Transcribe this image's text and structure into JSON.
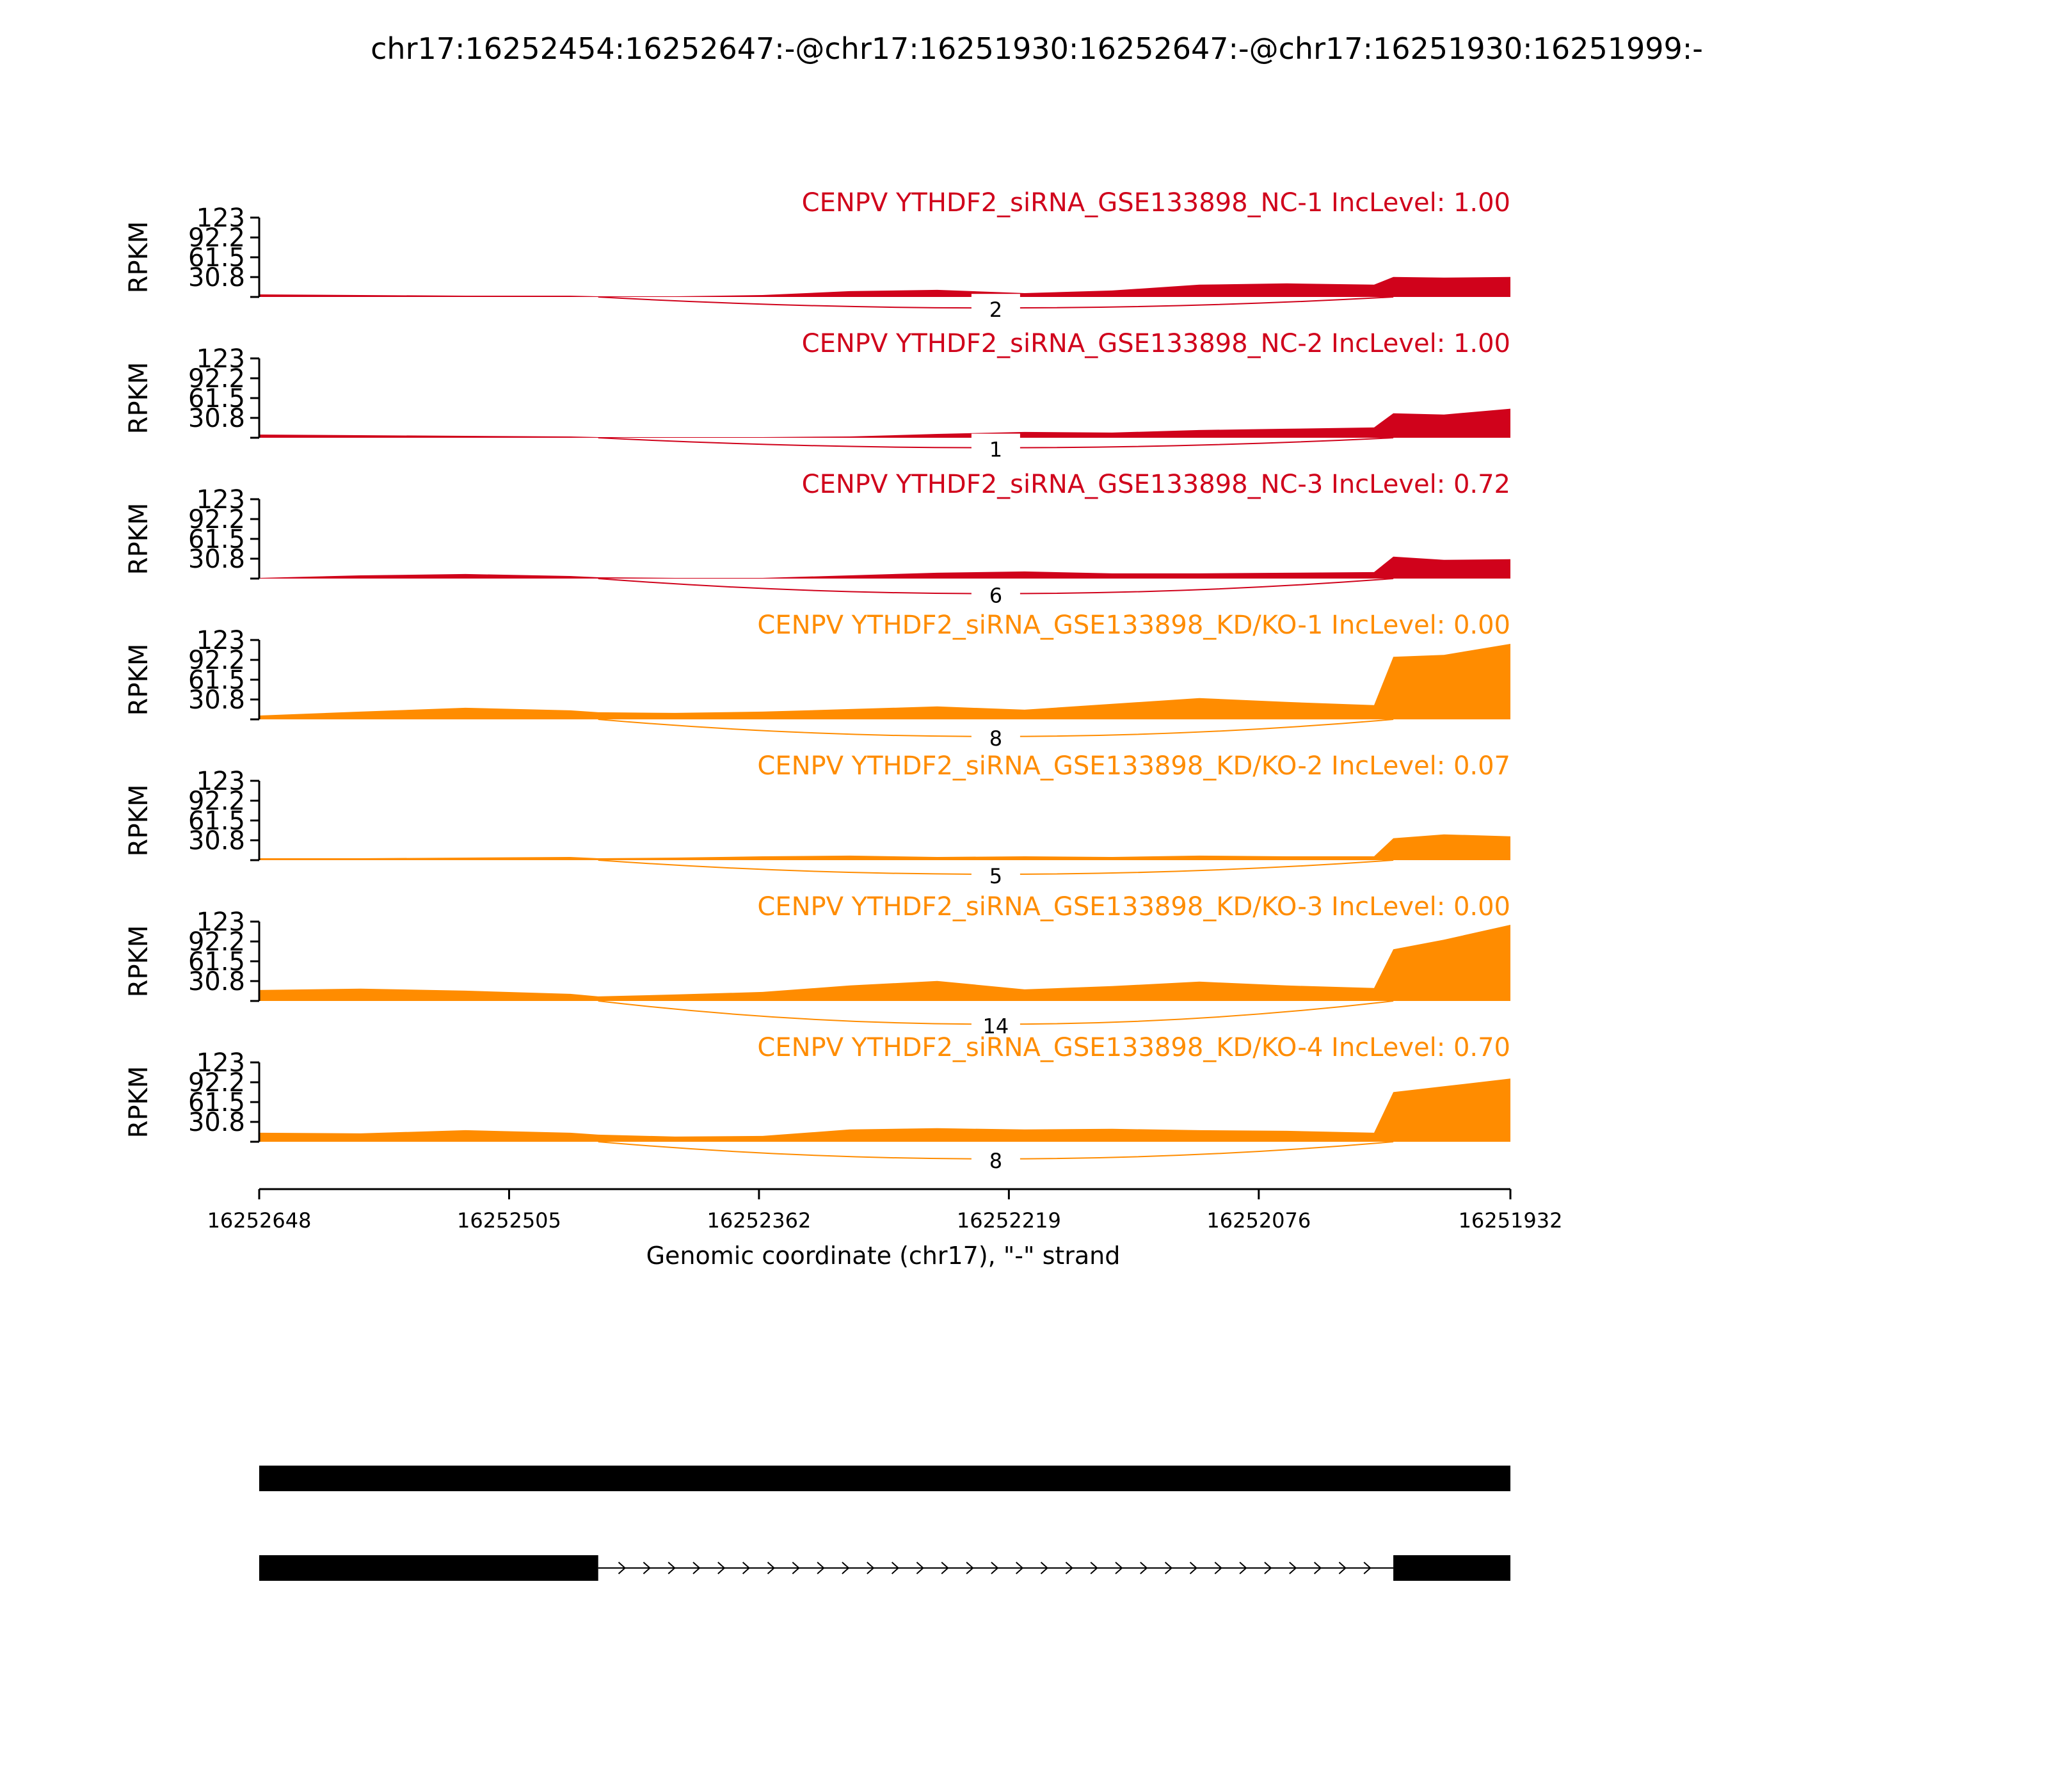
{
  "chart_data": {
    "type": "area",
    "title": "chr17:16252454:16252647:-@chr17:16251930:16252647:-@chr17:16251930:16251999:-",
    "xlabel": "Genomic coordinate (chr17), \"-\" strand",
    "ylabel": "RPKM",
    "xlim": [
      16252648,
      16251932
    ],
    "x_ticks": [
      "16252648",
      "16252505",
      "16252362",
      "16252219",
      "16252076",
      "16251932"
    ],
    "ylim": [
      0,
      123
    ],
    "y_ticks": [
      "30.8",
      "61.5",
      "92.2",
      "123"
    ],
    "grid": false,
    "colors": {
      "NC": "#d0021b",
      "KD/KO": "#ff8c00",
      "gene_model": "#000000"
    },
    "x": [
      16252648,
      16252590,
      16252530,
      16252470,
      16252454,
      16252410,
      16252360,
      16252310,
      16252260,
      16252210,
      16252160,
      16252110,
      16252060,
      16252010,
      16251999,
      16251970,
      16251932
    ],
    "tracks": [
      {
        "label": "CENPV YTHDF2_siRNA_GSE133898_NC-1 IncLevel: 1.00",
        "group": "NC",
        "values": [
          4,
          3,
          2,
          2,
          1,
          1,
          3,
          9,
          11,
          6,
          10,
          19,
          21,
          19,
          31,
          30,
          31
        ],
        "junctions": [
          {
            "from": 16252454,
            "to": 16251999,
            "count": "2"
          }
        ]
      },
      {
        "label": "CENPV YTHDF2_siRNA_GSE133898_NC-2 IncLevel: 1.00",
        "group": "NC",
        "values": [
          5,
          4,
          3,
          2,
          1,
          1,
          1,
          2,
          6,
          9,
          8,
          12,
          14,
          16,
          38,
          36,
          45
        ],
        "junctions": [
          {
            "from": 16252454,
            "to": 16251999,
            "count": "1"
          }
        ]
      },
      {
        "label": "CENPV YTHDF2_siRNA_GSE133898_NC-3 IncLevel: 0.72",
        "group": "NC",
        "values": [
          1,
          5,
          7,
          4,
          2,
          1,
          1,
          5,
          9,
          11,
          8,
          8,
          9,
          10,
          34,
          29,
          30
        ],
        "junctions": [
          {
            "from": 16252454,
            "to": 16251999,
            "count": "6"
          }
        ]
      },
      {
        "label": "CENPV YTHDF2_siRNA_GSE133898_KD/KO-1 IncLevel: 0.00",
        "group": "KD/KO",
        "values": [
          6,
          12,
          18,
          14,
          11,
          10,
          12,
          16,
          20,
          15,
          24,
          33,
          27,
          22,
          97,
          100,
          117
        ],
        "junctions": [
          {
            "from": 16252454,
            "to": 16251999,
            "count": "8"
          }
        ]
      },
      {
        "label": "CENPV YTHDF2_siRNA_GSE133898_KD/KO-2 IncLevel: 0.07",
        "group": "KD/KO",
        "values": [
          3,
          3,
          4,
          5,
          3,
          4,
          6,
          7,
          5,
          6,
          5,
          7,
          6,
          6,
          34,
          40,
          37
        ],
        "junctions": [
          {
            "from": 16252454,
            "to": 16251999,
            "count": "5"
          }
        ]
      },
      {
        "label": "CENPV YTHDF2_siRNA_GSE133898_KD/KO-3 IncLevel: 0.00",
        "group": "KD/KO",
        "values": [
          17,
          19,
          16,
          11,
          7,
          10,
          14,
          24,
          31,
          18,
          23,
          30,
          24,
          20,
          80,
          95,
          118
        ],
        "junctions": [
          {
            "from": 16252454,
            "to": 16251999,
            "count": "14"
          }
        ]
      },
      {
        "label": "CENPV YTHDF2_siRNA_GSE133898_KD/KO-4 IncLevel: 0.70",
        "group": "KD/KO",
        "values": [
          14,
          13,
          18,
          14,
          11,
          8,
          9,
          19,
          21,
          19,
          20,
          18,
          17,
          14,
          77,
          86,
          98
        ],
        "junctions": [
          {
            "from": 16252454,
            "to": 16251999,
            "count": "8"
          }
        ]
      }
    ],
    "gene_models": [
      {
        "exons": [
          [
            16252648,
            16251932
          ]
        ]
      },
      {
        "exons": [
          [
            16252648,
            16252454
          ],
          [
            16251999,
            16251932
          ]
        ]
      }
    ]
  }
}
